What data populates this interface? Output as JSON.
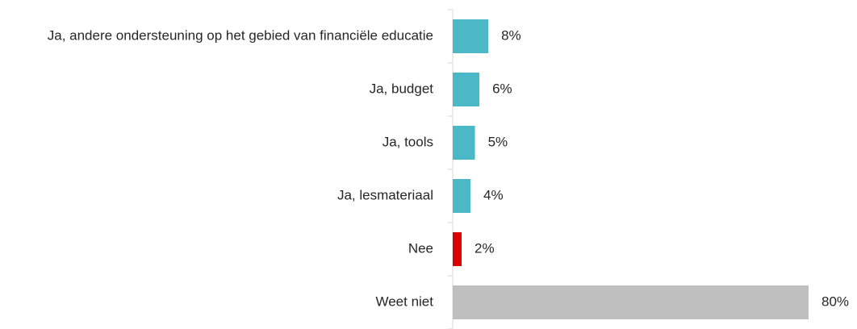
{
  "chart_data": {
    "type": "bar",
    "orientation": "horizontal",
    "categories": [
      "Ja, andere ondersteuning op het gebied van financiële educatie",
      "Ja, budget",
      "Ja, tools",
      "Ja, lesmateriaal",
      "Nee",
      "Weet niet"
    ],
    "values": [
      8,
      6,
      5,
      4,
      2,
      80
    ],
    "value_labels": [
      "8%",
      "6%",
      "5%",
      "4%",
      "2%",
      "80%"
    ],
    "colors": [
      "#4bb8c8",
      "#4bb8c8",
      "#4bb8c8",
      "#4bb8c8",
      "#dc0000",
      "#bfbfbf"
    ]
  }
}
